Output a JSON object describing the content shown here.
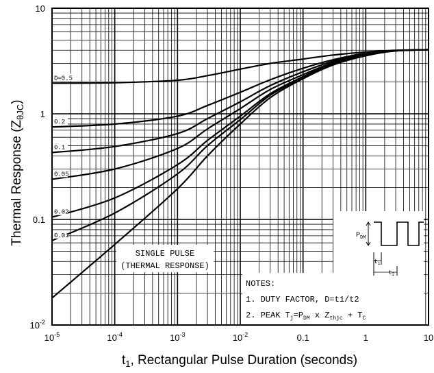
{
  "chart_data": {
    "type": "line",
    "x_scale": "log",
    "y_scale": "log",
    "xlim": [
      1e-05,
      10
    ],
    "ylim": [
      0.01,
      10
    ],
    "grid": true,
    "xlabel": {
      "main": "t",
      "sub": "1",
      "rest": ", Rectangular Pulse Duration (seconds)"
    },
    "ylabel": {
      "main": "Thermal Response (Z",
      "sub": "θJC",
      "rest": ")"
    },
    "x_ticks": [
      {
        "value": 1e-05,
        "base": "10",
        "exp": "-5"
      },
      {
        "value": 0.0001,
        "base": "10",
        "exp": "-4"
      },
      {
        "value": 0.001,
        "base": "10",
        "exp": "-3"
      },
      {
        "value": 0.01,
        "base": "10",
        "exp": "-2"
      },
      {
        "value": 0.1,
        "base": "0.1",
        "exp": ""
      },
      {
        "value": 1,
        "base": "1",
        "exp": ""
      },
      {
        "value": 10,
        "base": "10",
        "exp": ""
      }
    ],
    "y_ticks": [
      {
        "value": 10,
        "base": "10",
        "exp": ""
      },
      {
        "value": 1,
        "base": "1",
        "exp": ""
      },
      {
        "value": 0.1,
        "base": "0.1",
        "exp": ""
      },
      {
        "value": 0.01,
        "base": "10",
        "exp": "-2"
      }
    ],
    "series": [
      {
        "name": "D=0.5",
        "x": [
          1e-05,
          0.0001,
          0.001,
          0.003,
          0.01,
          0.03,
          0.1,
          0.3,
          1,
          3,
          10
        ],
        "y": [
          1.95,
          1.97,
          2.08,
          2.3,
          2.65,
          3.0,
          3.3,
          3.6,
          3.85,
          4.0,
          4.05
        ]
      },
      {
        "name": "0.2",
        "x": [
          1e-05,
          0.0001,
          0.001,
          0.003,
          0.01,
          0.03,
          0.1,
          0.3,
          1,
          3,
          10
        ],
        "y": [
          0.75,
          0.8,
          0.95,
          1.2,
          1.6,
          2.1,
          2.7,
          3.25,
          3.75,
          3.95,
          4.05
        ]
      },
      {
        "name": "0.1",
        "x": [
          1e-05,
          0.0001,
          0.001,
          0.003,
          0.01,
          0.03,
          0.1,
          0.3,
          1,
          3,
          10
        ],
        "y": [
          0.43,
          0.49,
          0.65,
          0.9,
          1.3,
          1.85,
          2.5,
          3.15,
          3.7,
          3.95,
          4.05
        ]
      },
      {
        "name": "0.05",
        "x": [
          1e-05,
          0.0001,
          0.001,
          0.003,
          0.01,
          0.03,
          0.1,
          0.3,
          1,
          3,
          10
        ],
        "y": [
          0.24,
          0.3,
          0.47,
          0.72,
          1.12,
          1.7,
          2.35,
          3.05,
          3.65,
          3.95,
          4.05
        ]
      },
      {
        "name": "0.02",
        "x": [
          1e-05,
          0.0001,
          0.001,
          0.003,
          0.01,
          0.03,
          0.1,
          0.3,
          1,
          3,
          10
        ],
        "y": [
          0.105,
          0.16,
          0.33,
          0.56,
          0.95,
          1.55,
          2.25,
          3.0,
          3.6,
          3.95,
          4.05
        ]
      },
      {
        "name": "0.01",
        "x": [
          1e-05,
          0.0001,
          0.001,
          0.003,
          0.01,
          0.03,
          0.1,
          0.3,
          1,
          3,
          10
        ],
        "y": [
          0.063,
          0.115,
          0.27,
          0.5,
          0.88,
          1.5,
          2.2,
          2.95,
          3.6,
          3.95,
          4.05
        ]
      },
      {
        "name": "SINGLE PULSE",
        "x": [
          1e-05,
          0.0001,
          0.001,
          0.003,
          0.01,
          0.03,
          0.1,
          0.3,
          1,
          3,
          10
        ],
        "y": [
          0.018,
          0.058,
          0.195,
          0.4,
          0.8,
          1.42,
          2.15,
          2.9,
          3.55,
          3.95,
          4.05
        ]
      }
    ],
    "annotations": {
      "single_pulse": [
        "SINGLE PULSE",
        "(THERMAL RESPONSE)"
      ],
      "notes_title": "NOTES:",
      "note1": "1. DUTY FACTOR, D=t1/t2",
      "note2": {
        "a": "2. PEAK T",
        "a_sub": "j",
        "b": "=P",
        "b_sub": "DM",
        "c": " x Z",
        "c_sub": "thjc",
        "d": " + T",
        "d_sub": "C"
      }
    },
    "waveform": {
      "pdm": "P",
      "pdm_sub": "DM",
      "t1": "t",
      "t1_sub": "1",
      "t2": "t",
      "t2_sub": "2"
    }
  }
}
